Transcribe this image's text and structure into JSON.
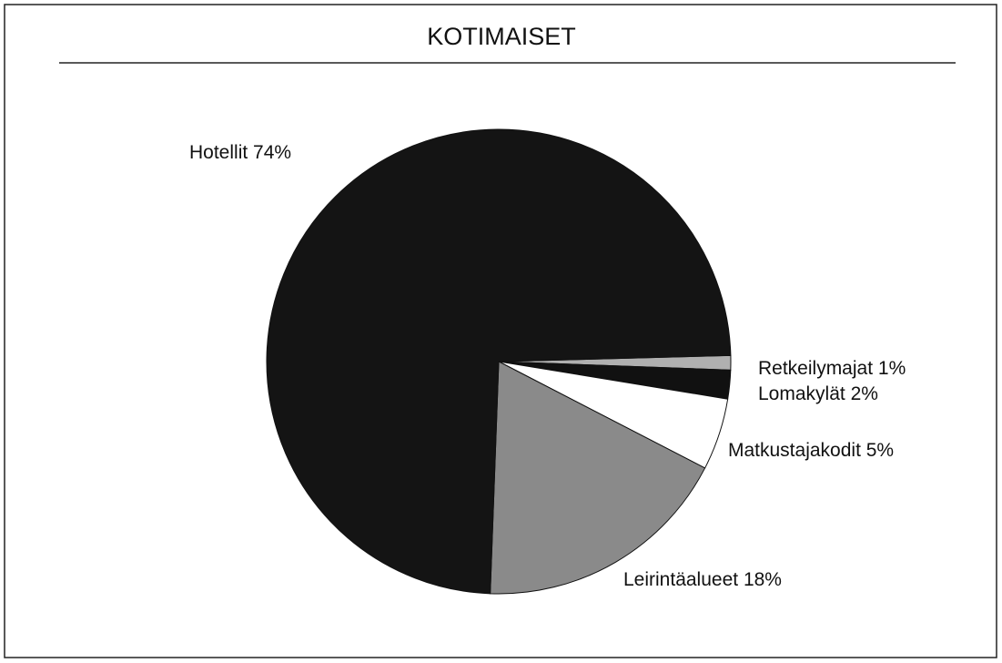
{
  "chart_data": {
    "type": "pie",
    "title": "KOTIMAISET",
    "categories": [
      "Retkeilymajat",
      "Lomakylät",
      "Matkustajakodit",
      "Leirintäalueet",
      "Hotellit"
    ],
    "values": [
      1,
      2,
      5,
      18,
      74
    ],
    "value_labels": [
      "1%",
      "2%",
      "5%",
      "18%",
      "74%"
    ],
    "colors": [
      "#b0b0b0",
      "#111111",
      "#ffffff",
      "#8a8a8a",
      "#141414"
    ]
  }
}
